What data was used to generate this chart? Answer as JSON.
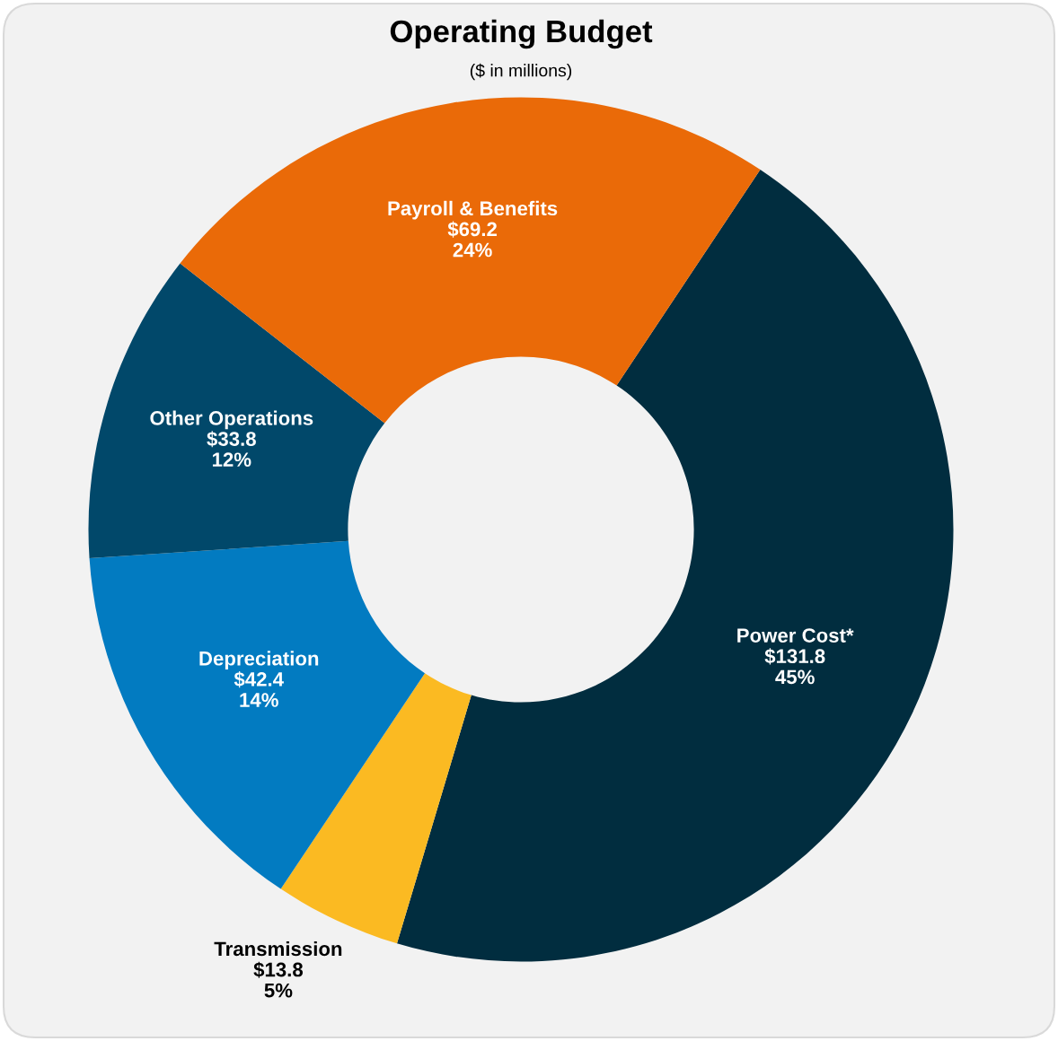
{
  "chart_data": {
    "type": "donut",
    "title": "Operating Budget",
    "subtitle": "($ in millions)",
    "categories": [
      "Power Cost*",
      "Transmission",
      "Depreciation",
      "Other Operations",
      "Payroll & Benefits"
    ],
    "values": [
      131.8,
      13.8,
      42.4,
      33.8,
      69.2
    ],
    "colors": [
      "#012d3f",
      "#fbba22",
      "#027bc1",
      "#01486a",
      "#ea6a08"
    ],
    "value_labels": [
      "$131.8\n45%",
      "$13.8\n5%",
      "$42.4\n14%",
      "$33.8\n12%",
      "$69.2\n24%"
    ],
    "legend": false
  }
}
